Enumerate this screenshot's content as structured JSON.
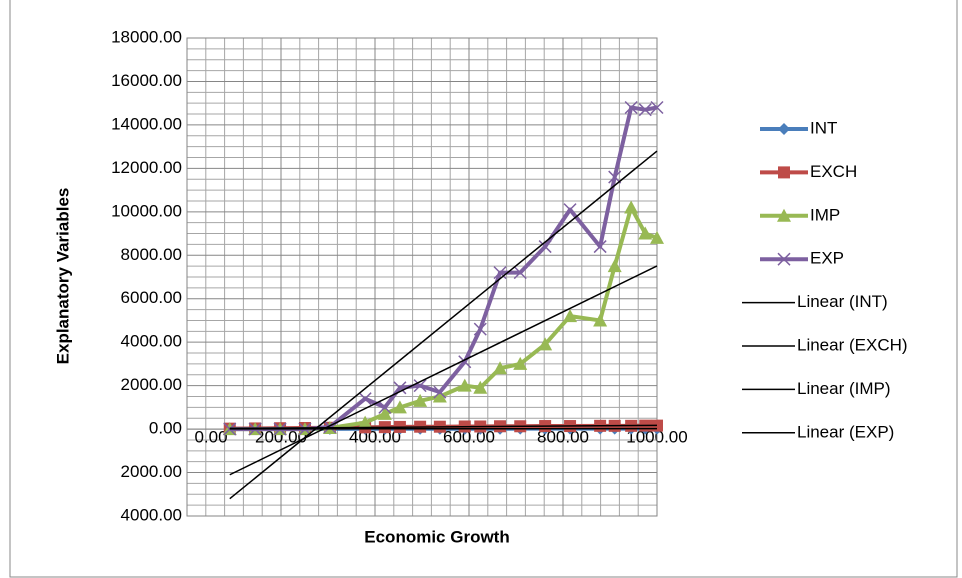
{
  "chart_data": {
    "type": "scatter",
    "xlabel": "Economic Growth",
    "ylabel": "Explanatory Variables",
    "x": [
      91,
      145,
      198,
      251,
      304,
      379,
      421,
      453,
      496,
      538,
      591,
      624,
      666,
      709,
      762,
      815,
      879,
      910,
      945,
      975,
      1000
    ],
    "series": [
      {
        "name": "INT",
        "color": "#4a7ebb",
        "marker": "diamond",
        "trendline": "Linear (INT)",
        "values": [
          10,
          10,
          10,
          12,
          12,
          14,
          15,
          15,
          16,
          16,
          17,
          18,
          18,
          19,
          20,
          20,
          21,
          22,
          22,
          23,
          24
        ]
      },
      {
        "name": "EXCH",
        "color": "#be4b48",
        "marker": "square",
        "trendline": "Linear (EXCH)",
        "values": [
          20,
          30,
          40,
          50,
          60,
          80,
          90,
          100,
          110,
          110,
          120,
          120,
          130,
          130,
          140,
          140,
          150,
          150,
          150,
          160,
          160
        ]
      },
      {
        "name": "IMP",
        "color": "#98b954",
        "marker": "triangle",
        "trendline": "Linear (IMP)",
        "values": [
          0,
          0,
          0,
          0,
          50,
          300,
          700,
          1000,
          1300,
          1500,
          2000,
          1900,
          2800,
          3000,
          3900,
          5200,
          5000,
          7500,
          10200,
          9000,
          8800
        ]
      },
      {
        "name": "EXP",
        "color": "#7d60a0",
        "marker": "x",
        "trendline": "Linear (EXP)",
        "values": [
          0,
          0,
          0,
          0,
          100,
          1400,
          1000,
          1900,
          2000,
          1700,
          3100,
          4600,
          7200,
          7200,
          8400,
          10100,
          8400,
          11600,
          14800,
          14700,
          14800
        ]
      }
    ],
    "trendline_color": "#000000",
    "xlim": [
      0,
      1000
    ],
    "xticks": [
      {
        "value": 0,
        "label": "0.00"
      },
      {
        "value": 200,
        "label": "200.00"
      },
      {
        "value": 400,
        "label": "400.00"
      },
      {
        "value": 600,
        "label": "600.00"
      },
      {
        "value": 800,
        "label": "800.00"
      },
      {
        "value": 1000,
        "label": "1000.00"
      }
    ],
    "ylim": [
      -4000,
      18000
    ],
    "yticks": [
      {
        "value": -4000,
        "label": "4000.00"
      },
      {
        "value": -2000,
        "label": "2000.00"
      },
      {
        "value": 0,
        "label": "0.00"
      },
      {
        "value": 2000,
        "label": "2000.00"
      },
      {
        "value": 4000,
        "label": "4000.00"
      },
      {
        "value": 6000,
        "label": "6000.00"
      },
      {
        "value": 8000,
        "label": "8000.00"
      },
      {
        "value": 10000,
        "label": "10000.00"
      },
      {
        "value": 12000,
        "label": "12000.00"
      },
      {
        "value": 14000,
        "label": "14000.00"
      },
      {
        "value": 16000,
        "label": "16000.00"
      },
      {
        "value": 18000,
        "label": "18000.00"
      }
    ],
    "negative_tick_color": "#ff0000",
    "grid": true,
    "minor_divisions": {
      "x": 5,
      "y": 4
    },
    "legend": "right"
  }
}
